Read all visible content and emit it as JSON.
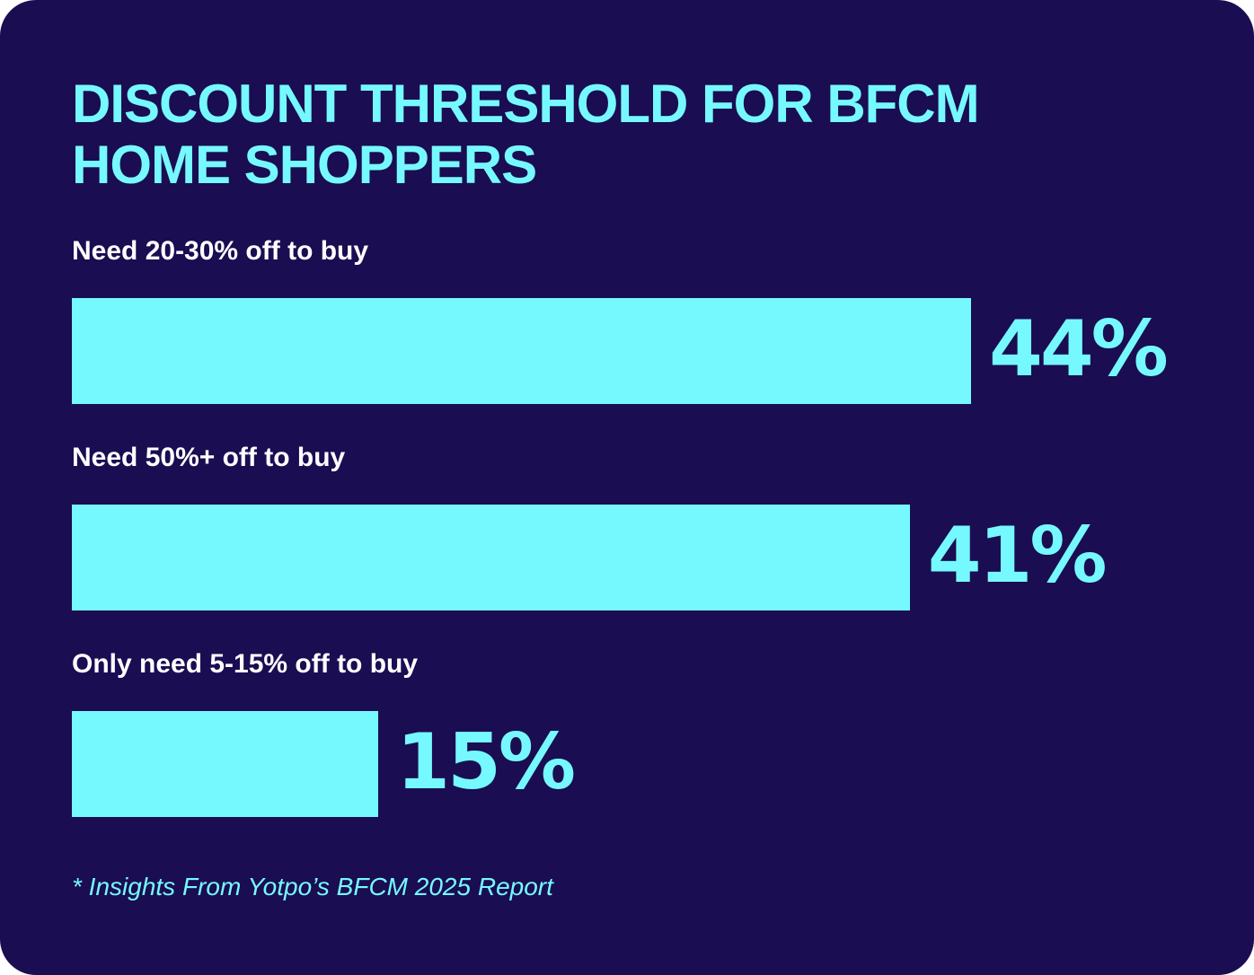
{
  "colors": {
    "background": "#1a0d52",
    "accent": "#76f9fe",
    "label_text": "#ffffff"
  },
  "chart_data": {
    "type": "bar",
    "orientation": "horizontal",
    "title": "DISCOUNT THRESHOLD FOR  BFCM\nHOME SHOPPERS",
    "categories": [
      "Need 20-30% off to buy",
      "Need 50%+ off to buy",
      "Only need 5-15% off to buy"
    ],
    "values": [
      44,
      41,
      15
    ],
    "value_labels": [
      "44%",
      "41%",
      "15%"
    ],
    "unit": "%",
    "xlim": [
      0,
      44
    ],
    "grid": false,
    "legend": "none"
  },
  "footnote": "* Insights From Yotpo’s BFCM 2025 Report"
}
